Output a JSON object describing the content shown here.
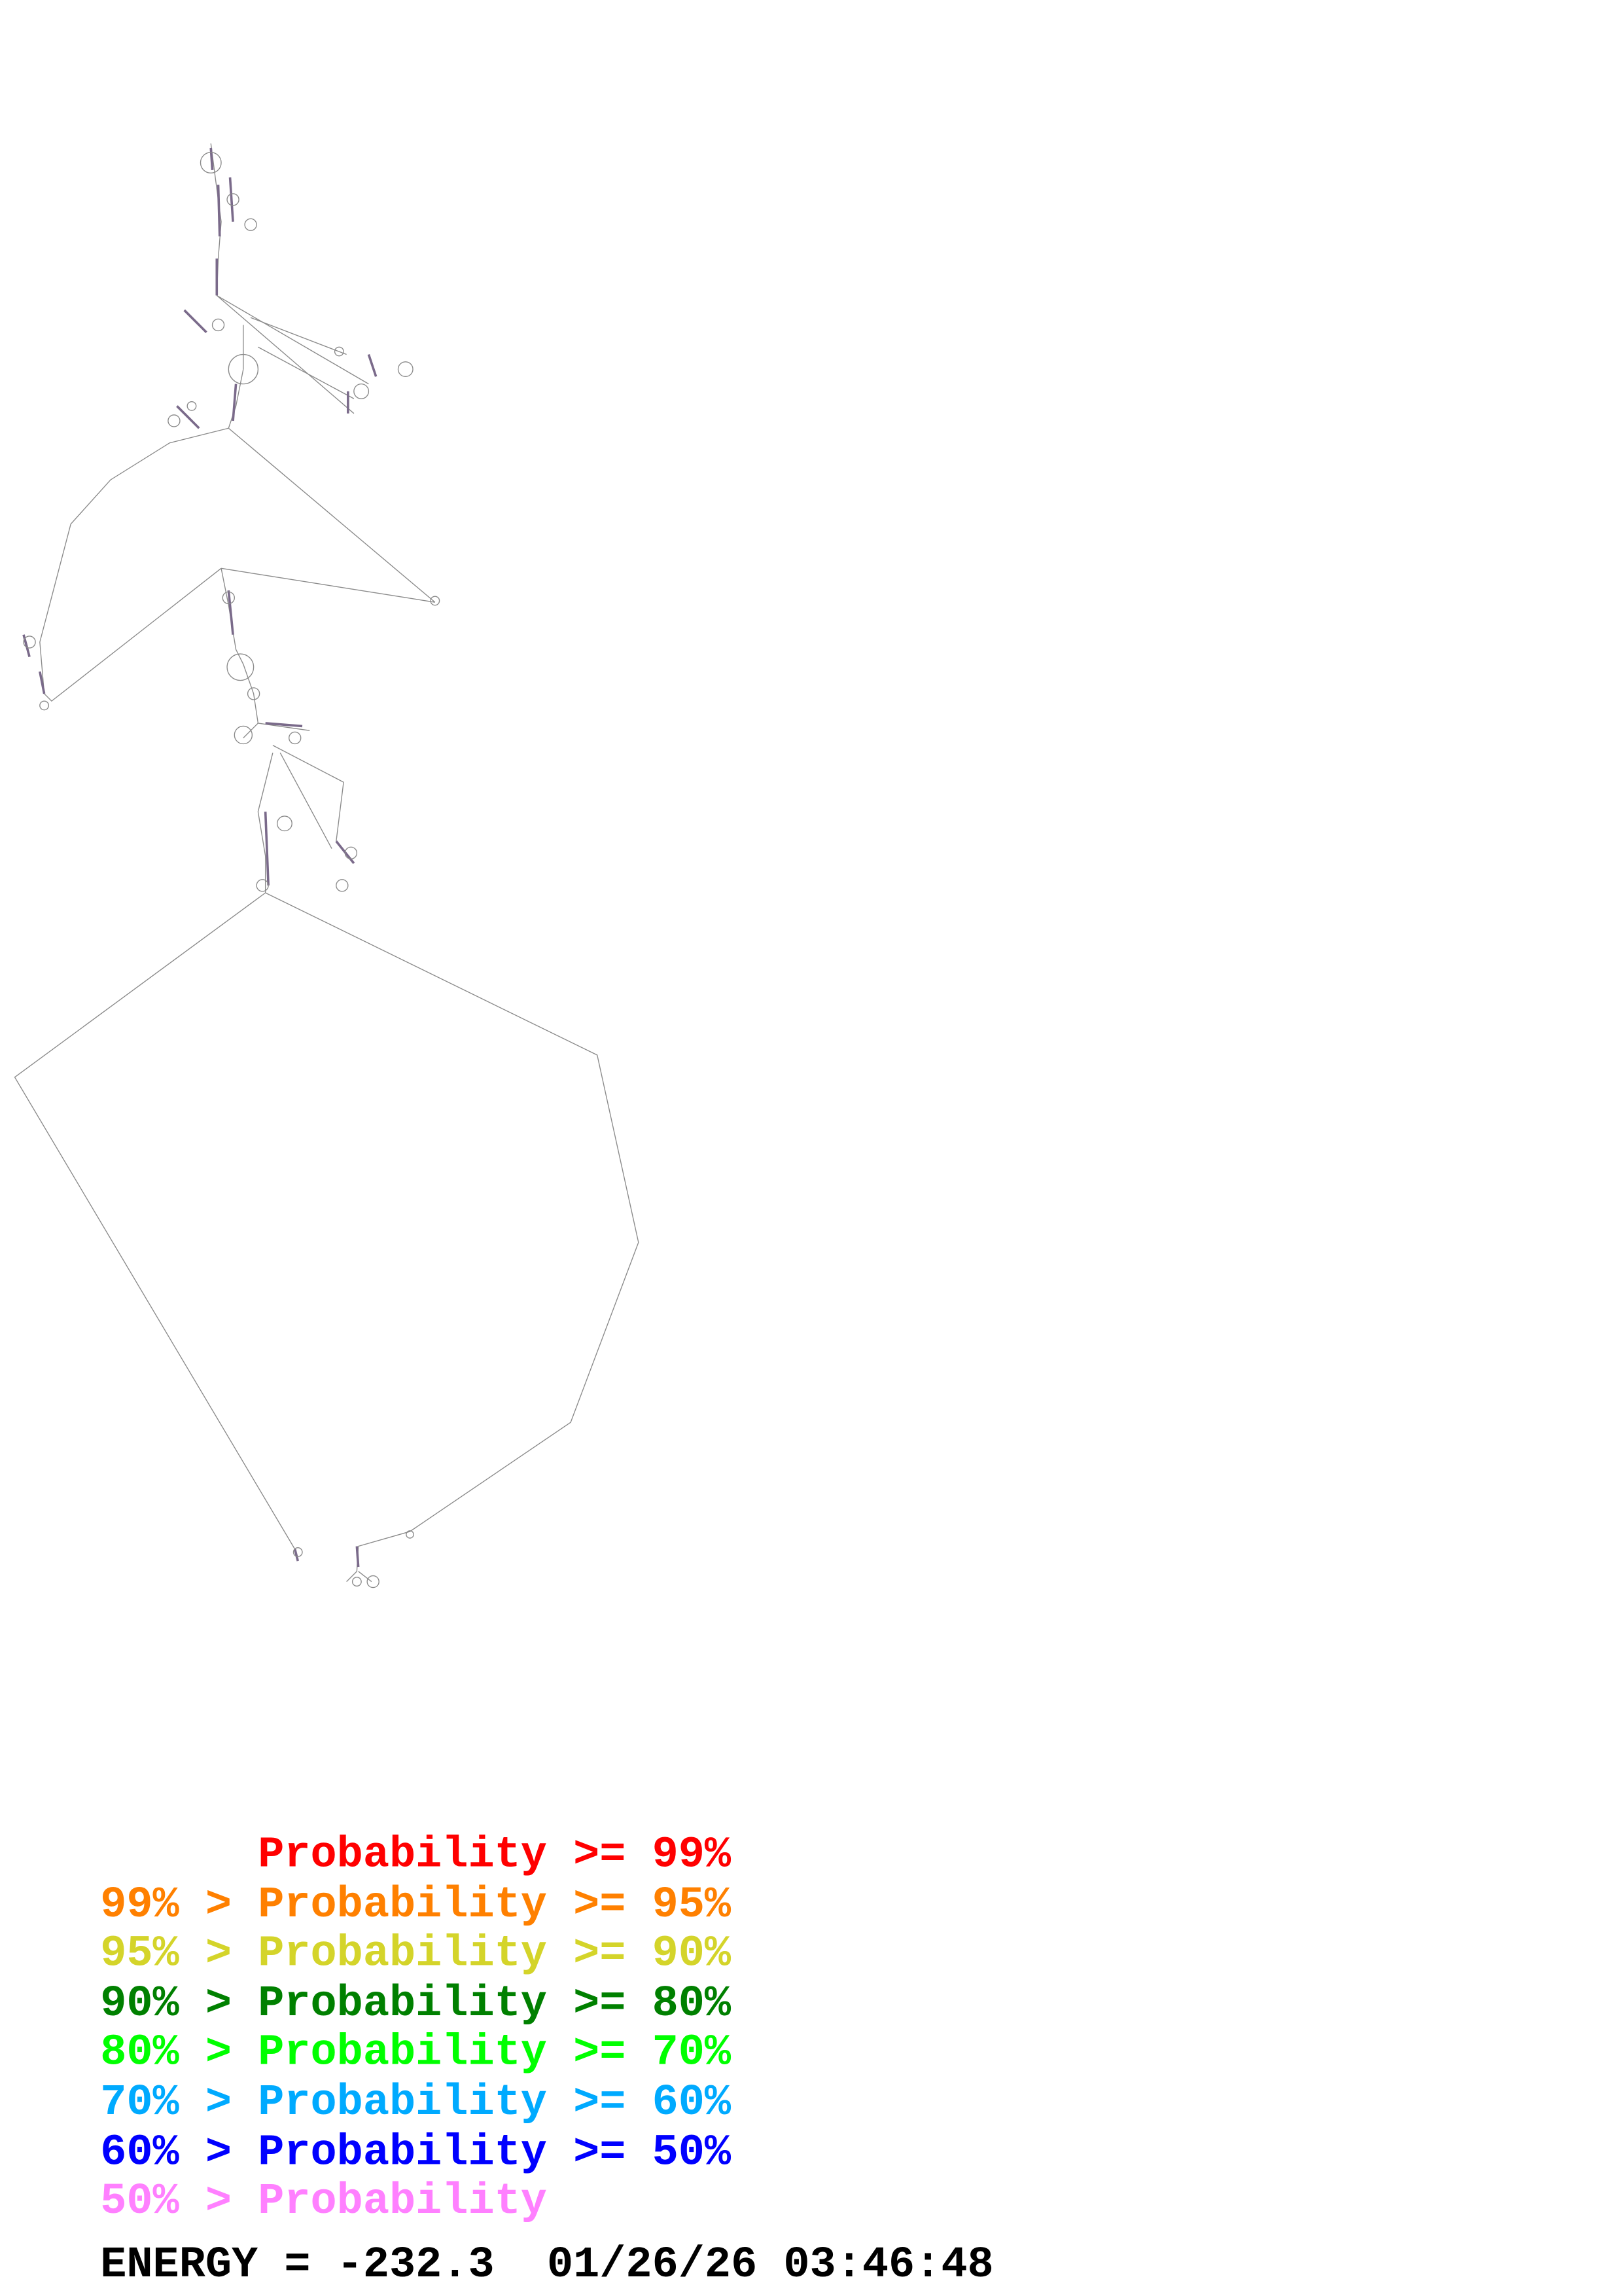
{
  "legend": {
    "rows": [
      {
        "text": "      Probability >= 99%",
        "color": "#ff0000"
      },
      {
        "text": "99% > Probability >= 95%",
        "color": "#ff8000"
      },
      {
        "text": "95% > Probability >= 90%",
        "color": "#d4d42a"
      },
      {
        "text": "90% > Probability >= 80%",
        "color": "#008000"
      },
      {
        "text": "80% > Probability >= 70%",
        "color": "#00ff00"
      },
      {
        "text": "70% > Probability >= 60%",
        "color": "#00aaff"
      },
      {
        "text": "60% > Probability >= 50%",
        "color": "#0000ff"
      },
      {
        "text": "50% > Probability",
        "color": "#ff80ff"
      }
    ]
  },
  "footer": {
    "energy_text": "ENERGY = -232.3  01/26/26 03:46:48"
  },
  "structure": {
    "backbone_color": "#8a8a8a",
    "base_color": "#c8a0d8"
  }
}
